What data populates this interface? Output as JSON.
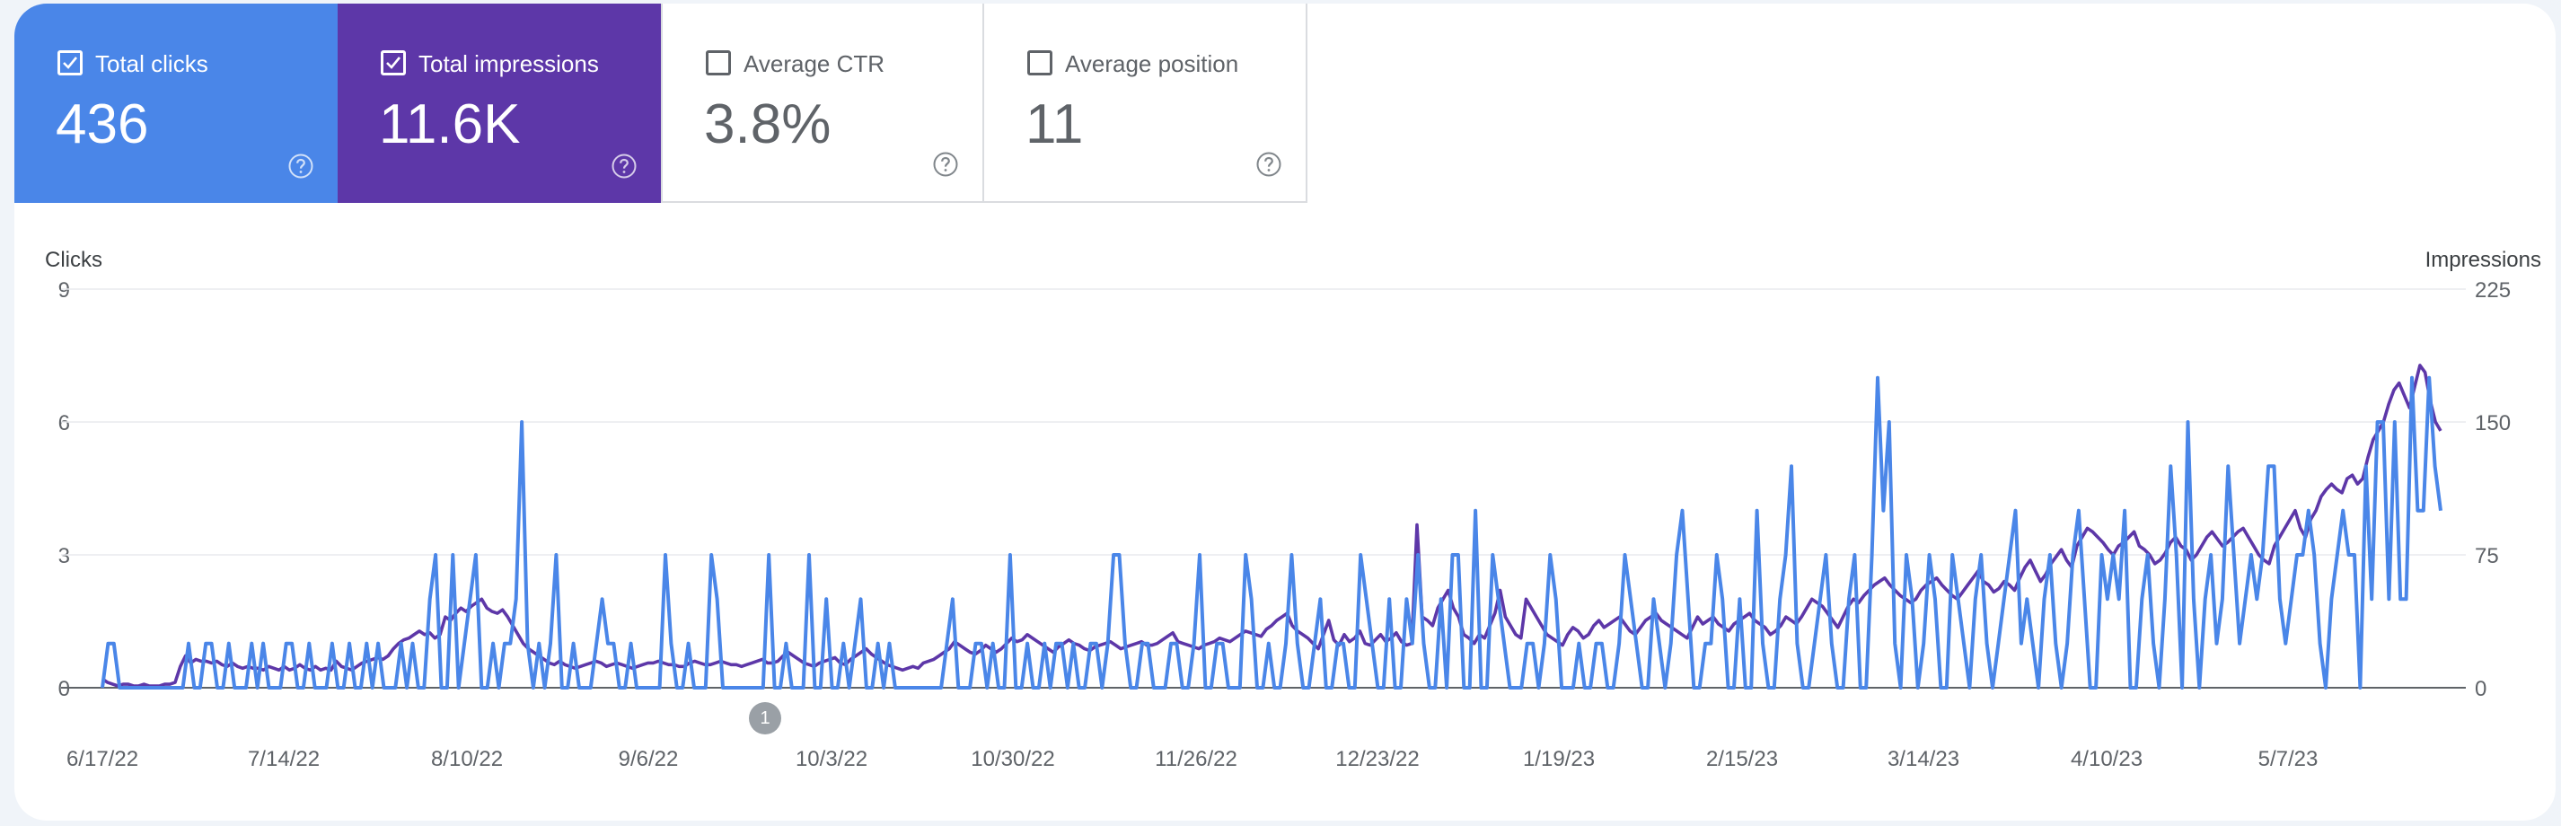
{
  "metrics": {
    "total_clicks": {
      "label": "Total clicks",
      "value": "436",
      "checked": true
    },
    "total_impressions": {
      "label": "Total impressions",
      "value": "11.6K",
      "checked": true
    },
    "average_ctr": {
      "label": "Average CTR",
      "value": "3.8%",
      "checked": false
    },
    "average_position": {
      "label": "Average position",
      "value": "11",
      "checked": false
    }
  },
  "annotation_marker": {
    "label": "1"
  },
  "colors": {
    "clicks": "#4a86e8",
    "impressions": "#5d37a8",
    "background": "#f0f4f9"
  },
  "icons": {
    "checkbox": "checkbox-icon",
    "help": "help-circle-icon"
  },
  "chart_data": {
    "type": "line",
    "x_tick_labels": [
      "6/17/22",
      "7/14/22",
      "8/10/22",
      "9/6/22",
      "10/3/22",
      "10/30/22",
      "11/26/22",
      "12/23/22",
      "1/19/23",
      "2/15/23",
      "3/14/23",
      "4/10/23",
      "5/7/23"
    ],
    "x_start": "6/17/22",
    "x_end": "6/1/23",
    "ylabel_left": "Clicks",
    "ylabel_right": "Impressions",
    "yticks_left": [
      "0",
      "3",
      "6",
      "9"
    ],
    "yticks_right": [
      "0",
      "75",
      "150",
      "225"
    ],
    "ylim_left": [
      0,
      9
    ],
    "ylim_right": [
      0,
      225
    ],
    "grid": true,
    "series": [
      {
        "name": "Total clicks",
        "axis": "left",
        "color": "#4a86e8",
        "values": [
          0,
          1,
          1,
          0,
          0,
          0,
          0,
          0,
          0,
          0,
          0,
          0,
          0,
          0,
          0,
          1,
          0,
          0,
          1,
          1,
          0,
          0,
          1,
          0,
          0,
          0,
          1,
          0,
          1,
          0,
          0,
          0,
          1,
          1,
          0,
          0,
          1,
          0,
          0,
          0,
          1,
          0,
          0,
          1,
          0,
          0,
          1,
          0,
          1,
          0,
          0,
          0,
          1,
          0,
          1,
          0,
          0,
          2,
          3,
          0,
          0,
          3,
          0,
          1,
          2,
          3,
          0,
          0,
          1,
          0,
          1,
          1,
          2,
          6,
          1,
          0,
          1,
          0,
          1,
          3,
          0,
          0,
          1,
          0,
          0,
          0,
          1,
          2,
          1,
          1,
          0,
          0,
          1,
          0,
          0,
          0,
          0,
          0,
          3,
          1,
          0,
          0,
          1,
          0,
          0,
          0,
          3,
          2,
          0,
          0,
          0,
          0,
          0,
          0,
          0,
          0,
          3,
          0,
          0,
          1,
          0,
          0,
          0,
          3,
          0,
          0,
          2,
          0,
          0,
          1,
          0,
          1,
          2,
          0,
          0,
          1,
          0,
          1,
          0,
          0,
          0,
          0,
          0,
          0,
          0,
          0,
          0,
          1,
          2,
          0,
          0,
          0,
          1,
          1,
          0,
          1,
          0,
          0,
          3,
          0,
          0,
          1,
          0,
          0,
          1,
          0,
          1,
          1,
          0,
          1,
          0,
          0,
          1,
          1,
          0,
          1,
          3,
          3,
          1,
          0,
          0,
          1,
          1,
          0,
          0,
          0,
          1,
          1,
          0,
          0,
          1,
          3,
          0,
          0,
          1,
          1,
          0,
          0,
          0,
          3,
          2,
          0,
          0,
          1,
          0,
          0,
          1,
          3,
          1,
          0,
          0,
          1,
          2,
          0,
          0,
          1,
          1,
          0,
          0,
          3,
          2,
          1,
          0,
          0,
          2,
          0,
          0,
          2,
          1,
          3,
          1,
          0,
          0,
          2,
          0,
          3,
          3,
          0,
          0,
          4,
          0,
          0,
          3,
          2,
          1,
          0,
          0,
          0,
          1,
          1,
          0,
          1,
          3,
          2,
          0,
          0,
          0,
          1,
          0,
          0,
          1,
          1,
          0,
          0,
          1,
          3,
          2,
          1,
          0,
          0,
          2,
          1,
          0,
          1,
          3,
          4,
          2,
          0,
          0,
          1,
          1,
          3,
          2,
          0,
          0,
          2,
          0,
          0,
          4,
          1,
          0,
          0,
          2,
          3,
          5,
          1,
          0,
          0,
          1,
          2,
          3,
          1,
          0,
          0,
          2,
          3,
          0,
          0,
          3,
          7,
          4,
          6,
          1,
          0,
          3,
          2,
          0,
          1,
          3,
          2,
          0,
          0,
          3,
          2,
          1,
          0,
          2,
          3,
          1,
          0,
          1,
          2,
          3,
          4,
          1,
          2,
          1,
          0,
          2,
          3,
          1,
          0,
          1,
          3,
          4,
          2,
          0,
          0,
          3,
          2,
          3,
          2,
          4,
          0,
          0,
          2,
          3,
          1,
          0,
          2,
          5,
          3,
          0,
          6,
          2,
          0,
          2,
          3,
          1,
          2,
          5,
          3,
          1,
          2,
          3,
          2,
          3,
          5,
          5,
          2,
          1,
          2,
          3,
          3,
          4,
          3,
          1,
          0,
          2,
          3,
          4,
          3,
          3,
          0,
          5,
          2,
          6,
          6,
          2,
          6,
          2,
          2,
          7,
          4,
          4,
          7,
          5,
          4
        ]
      },
      {
        "name": "Total impressions",
        "axis": "right",
        "color": "#5d37a8",
        "values": [
          5,
          3,
          2,
          1,
          2,
          2,
          1,
          1,
          2,
          1,
          1,
          1,
          2,
          2,
          3,
          12,
          18,
          14,
          16,
          15,
          15,
          14,
          15,
          13,
          12,
          14,
          12,
          11,
          12,
          11,
          11,
          10,
          12,
          11,
          10,
          12,
          10,
          11,
          13,
          11,
          10,
          12,
          10,
          11,
          10,
          15,
          12,
          11,
          10,
          12,
          14,
          15,
          16,
          17,
          16,
          18,
          22,
          25,
          27,
          28,
          30,
          32,
          30,
          31,
          28,
          30,
          40,
          38,
          42,
          45,
          43,
          46,
          48,
          50,
          45,
          43,
          42,
          44,
          40,
          35,
          30,
          25,
          22,
          20,
          18,
          16,
          14,
          13,
          15,
          13,
          12,
          11,
          12,
          13,
          14,
          15,
          14,
          12,
          13,
          14,
          13,
          12,
          11,
          12,
          13,
          14,
          14,
          15,
          14,
          13,
          13,
          12,
          12,
          14,
          15,
          14,
          13,
          13,
          14,
          15,
          14,
          13,
          13,
          12,
          13,
          14,
          15,
          16,
          14,
          14,
          15,
          18,
          20,
          18,
          16,
          14,
          13,
          12,
          14,
          15,
          16,
          17,
          14,
          13,
          16,
          18,
          20,
          22,
          19,
          17,
          15,
          13,
          12,
          11,
          10,
          11,
          12,
          11,
          14,
          15,
          16,
          18,
          20,
          22,
          26,
          24,
          22,
          20,
          19,
          21,
          24,
          22,
          20,
          22,
          25,
          28,
          26,
          27,
          30,
          28,
          26,
          24,
          22,
          20,
          23,
          25,
          27,
          25,
          24,
          22,
          21,
          23,
          24,
          25,
          26,
          24,
          22,
          23,
          24,
          25,
          26,
          24,
          24,
          25,
          27,
          29,
          31,
          26,
          25,
          24,
          23,
          22,
          24,
          25,
          26,
          28,
          27,
          26,
          28,
          30,
          32,
          31,
          30,
          29,
          33,
          35,
          38,
          40,
          42,
          35,
          32,
          30,
          28,
          25,
          22,
          30,
          38,
          27,
          24,
          30,
          26,
          28,
          32,
          25,
          24,
          27,
          30,
          26,
          28,
          31,
          26,
          24,
          25,
          92,
          40,
          38,
          35,
          45,
          50,
          55,
          45,
          40,
          30,
          28,
          25,
          30,
          28,
          35,
          42,
          55,
          40,
          35,
          30,
          28,
          50,
          45,
          40,
          35,
          30,
          28,
          26,
          24,
          30,
          34,
          32,
          28,
          30,
          35,
          38,
          34,
          36,
          38,
          40,
          36,
          32,
          30,
          34,
          38,
          40,
          42,
          38,
          36,
          34,
          32,
          30,
          28,
          34,
          40,
          36,
          38,
          40,
          36,
          34,
          32,
          36,
          38,
          40,
          42,
          38,
          36,
          34,
          30,
          32,
          35,
          40,
          38,
          36,
          40,
          45,
          50,
          48,
          46,
          42,
          38,
          34,
          40,
          46,
          50,
          48,
          52,
          55,
          58,
          60,
          62,
          58,
          55,
          52,
          50,
          48,
          50,
          55,
          58,
          60,
          62,
          58,
          55,
          52,
          50,
          54,
          58,
          62,
          66,
          60,
          58,
          54,
          56,
          60,
          58,
          55,
          62,
          68,
          72,
          66,
          60,
          64,
          70,
          74,
          78,
          72,
          68,
          80,
          85,
          90,
          88,
          85,
          82,
          78,
          75,
          80,
          82,
          85,
          88,
          80,
          78,
          75,
          70,
          72,
          76,
          82,
          85,
          80,
          78,
          72,
          75,
          80,
          85,
          88,
          84,
          80,
          82,
          85,
          88,
          90,
          85,
          80,
          75,
          72,
          70,
          80,
          85,
          90,
          95,
          100,
          90,
          85,
          95,
          100,
          108,
          112,
          115,
          112,
          110,
          118,
          120,
          115,
          118,
          130,
          140,
          145,
          150,
          160,
          168,
          172,
          165,
          158,
          170,
          182,
          178,
          162,
          150,
          145
        ]
      }
    ]
  }
}
